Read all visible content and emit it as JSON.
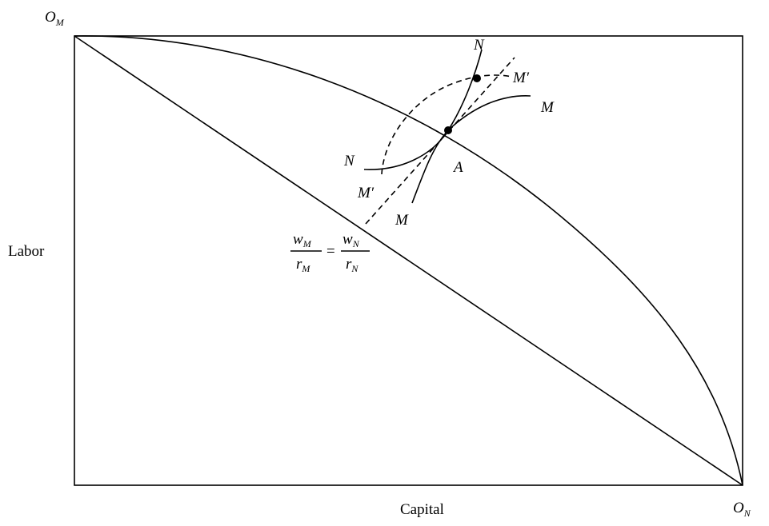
{
  "origins": {
    "top_left": {
      "main": "O",
      "sub": "M"
    },
    "bottom_right": {
      "main": "O",
      "sub": "N"
    }
  },
  "axes": {
    "vertical_label": "Labor",
    "horizontal_label": "Capital"
  },
  "curve_labels": {
    "n_top": "N",
    "n_left": "N",
    "m_right": "M",
    "m_bottom": "M",
    "m_prime_right": "M′",
    "m_prime_left": "M′",
    "point_a": "A"
  },
  "wage_ratio": {
    "left_num": "w",
    "left_num_sub": "M",
    "left_den": "r",
    "left_den_sub": "M",
    "equals": "=",
    "right_num": "w",
    "right_num_sub": "N",
    "right_den": "r",
    "right_den_sub": "N"
  }
}
